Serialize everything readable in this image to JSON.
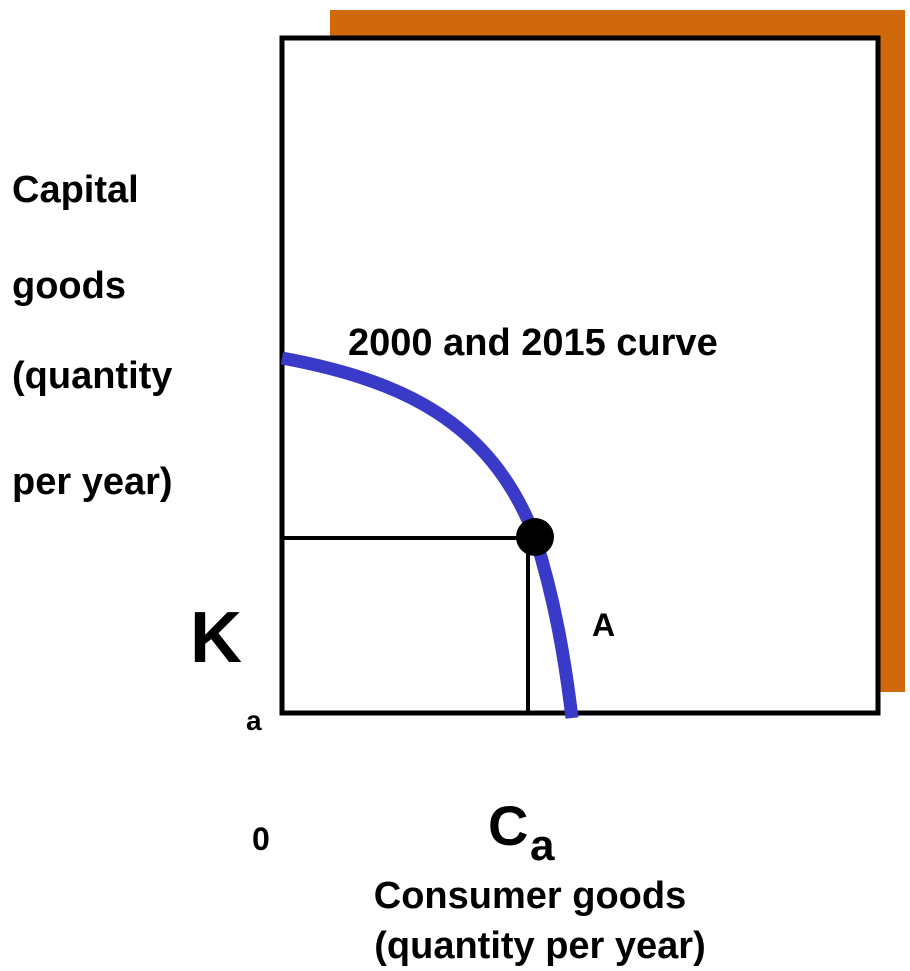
{
  "y_axis_label": [
    "Capital",
    "goods",
    "(quantity",
    "per year)"
  ],
  "curve_label": "2000 and 2015 curve",
  "point_label": "A",
  "k_label": {
    "main": "K",
    "sub": "a"
  },
  "origin_label": "0",
  "c_label": {
    "main": "C",
    "sub": "a"
  },
  "x_axis_label": [
    "Consumer goods",
    "(quantity per year)"
  ]
}
